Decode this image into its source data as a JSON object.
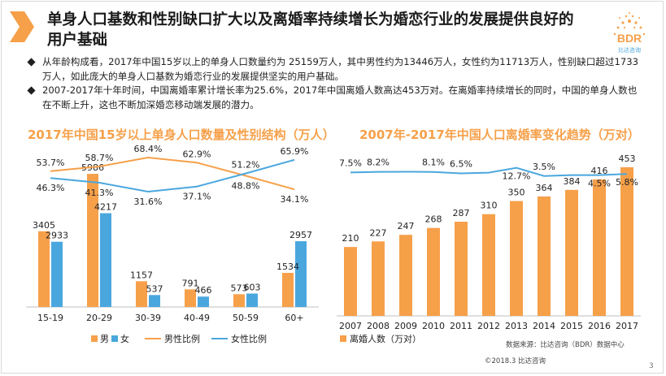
{
  "title": "单身人口基数和性别缺口扩大以及离婚率持续增长为婚恋行业的发展提供良好的用户基础",
  "logo": {
    "text": "BDR",
    "subtext": "比达咨询"
  },
  "bullets": [
    "从年龄构成看，2017年中国15岁以上的单身人口数量约为 25159万人，其中男性约为13446万人，女性约为11713万人，性别缺口超过1733万人，如此庞大的单身人口基数为婚恋行业的发展提供坚实的用户基础。",
    "2007-2017年十年时间，中国离婚率累计增长率为25.6%，2017年中国离婚人数高达453万对。在离婚率持续增长的同时，中国的单身人数也在不断上升，这也不断加深婚恋移动端发展的潜力。"
  ],
  "colors": {
    "accent": "#f6a04a",
    "male": "#f6a04a",
    "female": "#4aa7de",
    "divorce": "#f6a04a",
    "rate": "#4aa7de"
  },
  "chart_data": [
    {
      "type": "bar",
      "title": "2017年中国15岁以上单身人口数量及性别结构（万人）",
      "categories": [
        "15-19",
        "20-29",
        "30-39",
        "40-49",
        "50-59",
        "60+"
      ],
      "series": [
        {
          "name": "男",
          "values": [
            3405,
            5986,
            1157,
            791,
            573,
            1534
          ]
        },
        {
          "name": "女",
          "values": [
            2933,
            4217,
            537,
            466,
            603,
            2957
          ]
        }
      ],
      "lines": [
        {
          "name": "男性比例",
          "values": [
            53.7,
            58.7,
            68.4,
            62.9,
            48.8,
            34.1
          ]
        },
        {
          "name": "女性比例",
          "values": [
            46.3,
            41.3,
            31.6,
            37.1,
            51.2,
            65.9
          ]
        }
      ],
      "line_labels": {
        "男性比例": [
          "53.7%",
          "58.7%",
          "68.4%",
          "62.9%",
          "48.8%",
          "34.1%"
        ],
        "女性比例": [
          "46.3%",
          "41.3%",
          "31.6%",
          "37.1%",
          "51.2%",
          "65.9%"
        ]
      },
      "ylim": [
        0,
        6500
      ],
      "line_ylim": [
        15,
        85
      ],
      "legend": [
        "男",
        "女",
        "男性比例",
        "女性比例"
      ]
    },
    {
      "type": "bar",
      "title": "2007年-2017年中国人口离婚率变化趋势（万对）",
      "categories": [
        "2007",
        "2008",
        "2009",
        "2010",
        "2011",
        "2012",
        "2013",
        "2014",
        "2015",
        "2016",
        "2017"
      ],
      "series": [
        {
          "name": "离婚人数（万对）",
          "values": [
            210,
            227,
            247,
            268,
            287,
            310,
            350,
            364,
            384,
            416,
            453
          ]
        }
      ],
      "lines": [
        {
          "name": "离婚率增长率",
          "values": [
            7.5,
            8.2,
            8.3,
            8.1,
            6.5,
            7.3,
            12.7,
            3.5,
            4.5,
            4.5,
            5.8
          ]
        }
      ],
      "line_labels": {
        "离婚率增长率": [
          "7.5%",
          "8.2%",
          "",
          "8.1%",
          "6.5%",
          "",
          "12.7%",
          "3.5%",
          "",
          "4.5%",
          "5.8%"
        ]
      },
      "ylim": [
        0,
        480
      ],
      "legend": [
        "离婚人数（万对）"
      ]
    }
  ],
  "footer": {
    "source": "数据来源：比达咨询（BDR）数据中心",
    "copyright": "©2018.3   比达咨询",
    "page": "3"
  }
}
